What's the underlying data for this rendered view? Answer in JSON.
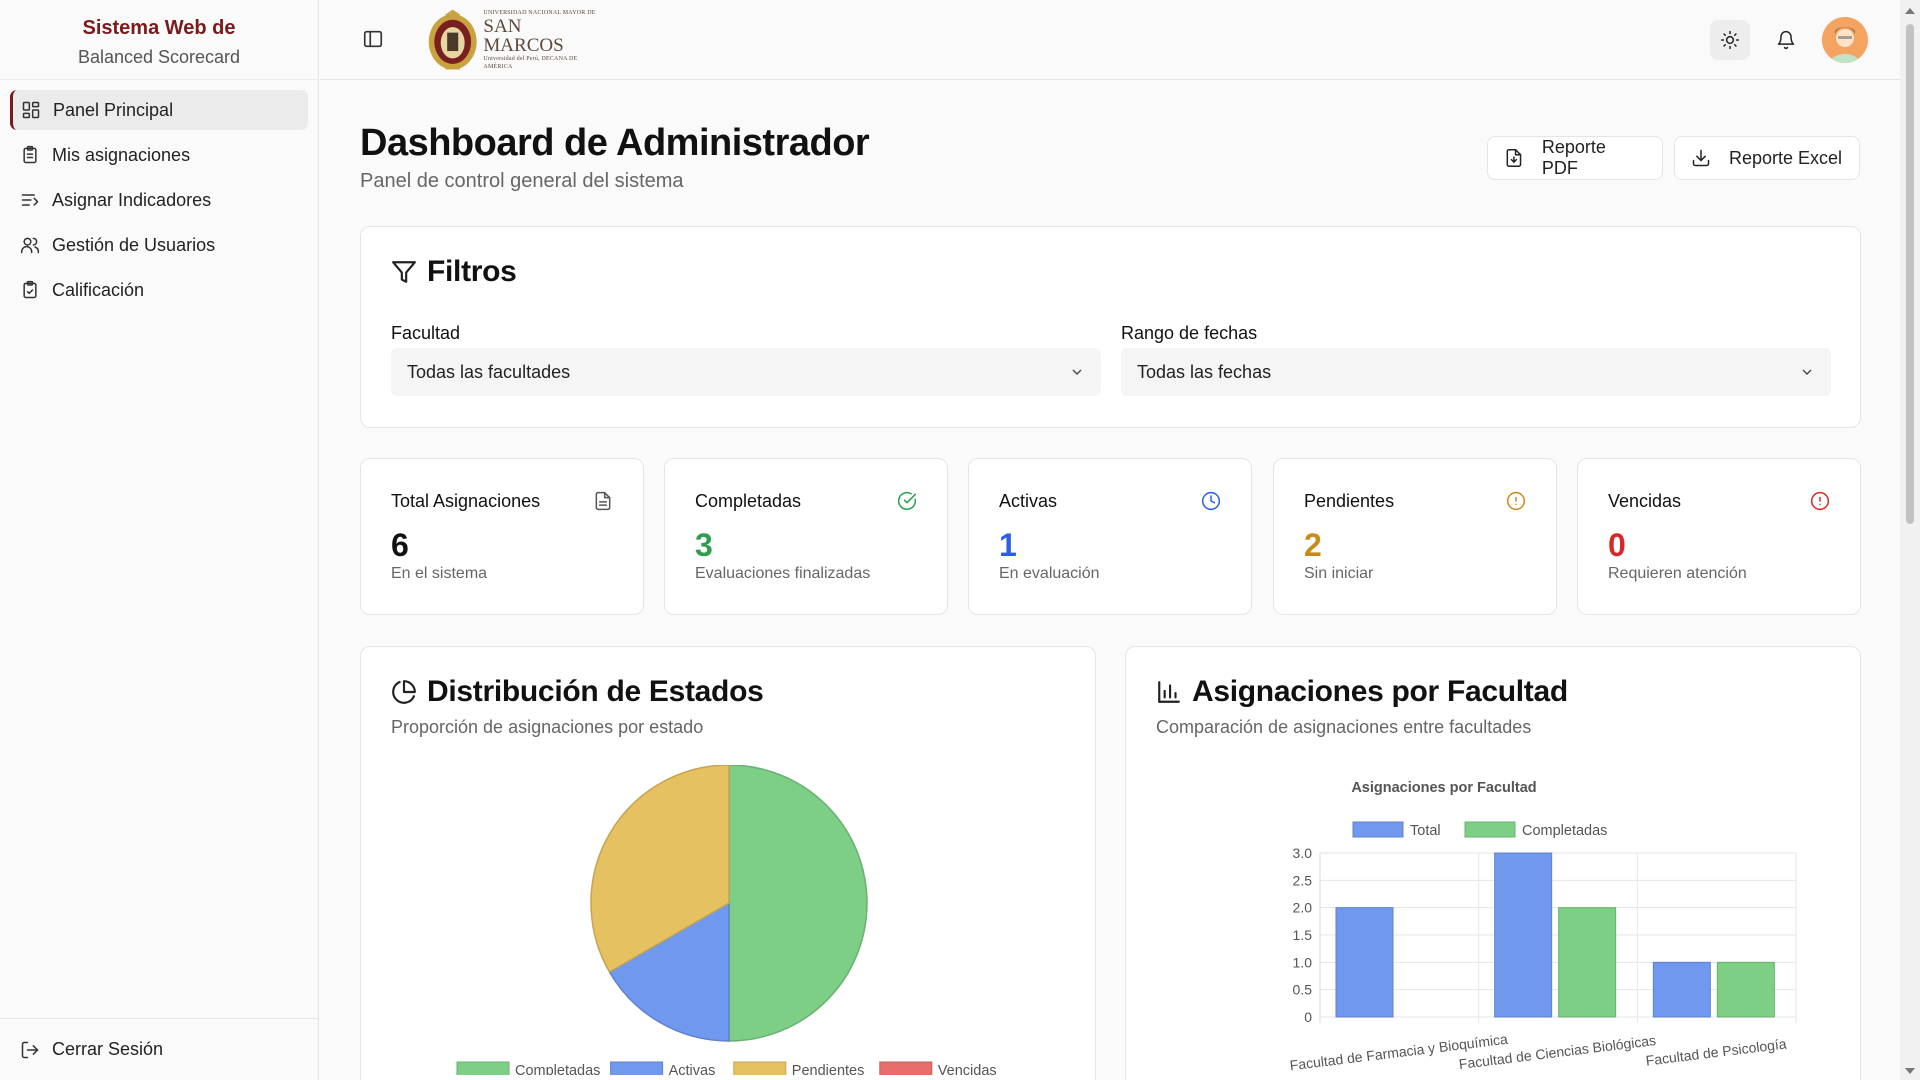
{
  "sidebar": {
    "brand_line1": "Sistema Web de",
    "brand_line2": "Balanced Scorecard",
    "items": [
      {
        "label": "Panel Principal"
      },
      {
        "label": "Mis asignaciones"
      },
      {
        "label": "Asignar Indicadores"
      },
      {
        "label": "Gestión de Usuarios"
      },
      {
        "label": "Calificación"
      }
    ],
    "logout_label": "Cerrar Sesión"
  },
  "header": {
    "logo_small": "UNIVERSIDAD NACIONAL MAYOR DE",
    "logo_big": "SAN MARCOS",
    "logo_tag": "Universidad del Perú, DECANA DE AMÉRICA",
    "icons": [
      "sidebar-toggle-icon",
      "sun-icon",
      "bell-icon",
      "avatar"
    ]
  },
  "page": {
    "title": "Dashboard de Administrador",
    "subtitle": "Panel de control general del sistema",
    "pdf_label": "Reporte PDF",
    "excel_label": "Reporte Excel"
  },
  "filters": {
    "title": "Filtros",
    "faculty_label": "Facultad",
    "faculty_value": "Todas las facultades",
    "dates_label": "Rango de fechas",
    "dates_value": "Todas las fechas"
  },
  "stats": [
    {
      "label": "Total Asignaciones",
      "value": "6",
      "desc": "En el sistema",
      "color": "#111111",
      "icon": "file-icon"
    },
    {
      "label": "Completadas",
      "value": "3",
      "desc": "Evaluaciones finalizadas",
      "color": "#2e9e4f",
      "icon": "check-circle-icon"
    },
    {
      "label": "Activas",
      "value": "1",
      "desc": "En evaluación",
      "color": "#2b5ee6",
      "icon": "clock-icon"
    },
    {
      "label": "Pendientes",
      "value": "2",
      "desc": "Sin iniciar",
      "color": "#c98a1d",
      "icon": "alert-circle-icon"
    },
    {
      "label": "Vencidas",
      "value": "0",
      "desc": "Requieren atención",
      "color": "#d92626",
      "icon": "alert-circle-icon"
    }
  ],
  "pie_card": {
    "title": "Distribución de Estados",
    "subtitle": "Proporción de asignaciones por estado"
  },
  "bar_card": {
    "title": "Asignaciones por Facultad",
    "subtitle": "Comparación de asignaciones entre facultades"
  },
  "chart_data": [
    {
      "type": "pie",
      "categories": [
        "Completadas",
        "Activas",
        "Pendientes",
        "Vencidas"
      ],
      "values": [
        3,
        1,
        2,
        0
      ],
      "colors": [
        "#7ccf85",
        "#7198ef",
        "#e6c162",
        "#e86e6e"
      ],
      "legend": "bottom"
    },
    {
      "type": "bar",
      "title": "Asignaciones por Facultad",
      "categories": [
        "Facultad de Farmacia y Bioquímica",
        "Facultad de Ciencias Biológicas",
        "Facultad de Psicología"
      ],
      "series": [
        {
          "name": "Total",
          "values": [
            2,
            3,
            1
          ],
          "color": "#7198ef"
        },
        {
          "name": "Completadas",
          "values": [
            0,
            2,
            1
          ],
          "color": "#7ccf85"
        }
      ],
      "yticks": [
        "0",
        "0.5",
        "1.0",
        "1.5",
        "2.0",
        "2.5",
        "3.0"
      ],
      "ylim": [
        0,
        3
      ],
      "legend": "top",
      "grid": true
    }
  ]
}
